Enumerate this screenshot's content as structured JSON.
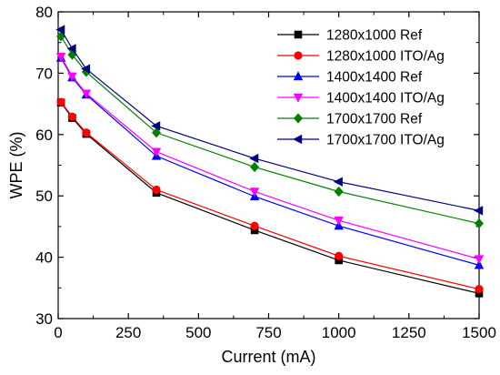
{
  "chart_data": {
    "type": "line",
    "title": "",
    "xlabel": "Current (mA)",
    "ylabel": "WPE (%)",
    "xlim": [
      0,
      1500
    ],
    "ylim": [
      30,
      80
    ],
    "xticks": [
      0,
      250,
      500,
      750,
      1000,
      1250,
      1500
    ],
    "yticks": [
      30,
      40,
      50,
      60,
      70,
      80
    ],
    "grid": false,
    "legend_position": "top-right",
    "x": [
      10,
      50,
      100,
      350,
      700,
      1000,
      1500
    ],
    "series": [
      {
        "name": "1280x1000 Ref",
        "color": "#000000",
        "marker": "square",
        "values": [
          65.2,
          62.7,
          60.1,
          50.5,
          44.4,
          39.5,
          34.1
        ]
      },
      {
        "name": "1280x1000 ITO/Ag",
        "color": "#ff0000",
        "marker": "circle",
        "values": [
          65.3,
          62.9,
          60.3,
          51.0,
          45.1,
          40.2,
          34.8
        ]
      },
      {
        "name": "1400x1400 Ref",
        "color": "#0000ff",
        "marker": "triangle-up",
        "values": [
          72.5,
          69.3,
          66.5,
          56.5,
          49.9,
          45.1,
          38.7
        ]
      },
      {
        "name": "1400x1400 ITO/Ag",
        "color": "#ff00ff",
        "marker": "triangle-down",
        "values": [
          72.7,
          69.5,
          66.7,
          57.2,
          50.7,
          46.0,
          39.7
        ]
      },
      {
        "name": "1700x1700 Ref",
        "color": "#008000",
        "marker": "diamond",
        "values": [
          76.0,
          73.0,
          70.2,
          60.3,
          54.7,
          50.7,
          45.5
        ]
      },
      {
        "name": "1700x1700 ITO/Ag",
        "color": "#000080",
        "marker": "triangle-left",
        "values": [
          77.1,
          74.0,
          70.7,
          61.4,
          56.1,
          52.3,
          47.6
        ]
      }
    ]
  }
}
